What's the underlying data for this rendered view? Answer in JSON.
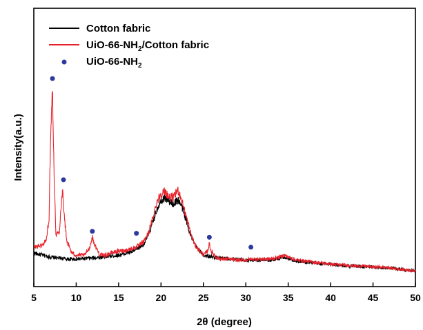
{
  "chart_data": {
    "type": "line",
    "xlabel": "2θ (degree)",
    "ylabel": "Intensity(a.u.)",
    "xlim": [
      5,
      50
    ],
    "x_ticks": [
      5,
      10,
      15,
      20,
      25,
      30,
      35,
      40,
      45,
      50
    ],
    "y_ticks_shown": false,
    "ylim": [
      0,
      100
    ],
    "grid": false,
    "legend_position": "top-left",
    "colors": {
      "cotton": "#000000",
      "composite": "#e8222b",
      "marker": "#2b3a9c"
    },
    "series": [
      {
        "name": "Cotton fabric",
        "x": [
          5,
          6,
          7,
          8,
          9,
          10,
          11,
          12,
          13,
          14,
          15,
          16,
          17,
          17.5,
          18,
          18.5,
          19,
          19.5,
          20,
          20.5,
          21,
          21.5,
          22,
          22.5,
          23,
          23.5,
          24,
          25,
          26,
          27,
          28,
          29,
          30,
          31,
          32,
          33,
          34,
          34.5,
          35,
          36,
          37,
          38,
          39,
          40,
          41,
          42,
          43,
          44,
          45,
          46,
          47,
          48,
          49,
          50
        ],
        "y": [
          12,
          11,
          10,
          9.5,
          9,
          9,
          9.3,
          9.6,
          10,
          10.5,
          11,
          12,
          13.5,
          15,
          17,
          21,
          27,
          34,
          39,
          40,
          38,
          37,
          39,
          35,
          28,
          21,
          16,
          11,
          10,
          9.5,
          9,
          9,
          8.5,
          8.5,
          8.5,
          8.5,
          9.5,
          10,
          9.5,
          8,
          7.5,
          7,
          6.5,
          6.5,
          6,
          5.5,
          5.5,
          5,
          5,
          4.5,
          4.5,
          4,
          3.5,
          3
        ]
      },
      {
        "name": "UiO-66-NH2/Cotton fabric",
        "x": [
          5,
          6,
          6.5,
          6.8,
          7.0,
          7.2,
          7.4,
          7.6,
          8.0,
          8.2,
          8.4,
          8.6,
          8.9,
          9.5,
          10,
          11,
          11.6,
          11.9,
          12.2,
          12.8,
          13.5,
          14,
          15,
          16,
          17,
          17.5,
          18,
          18.5,
          19,
          19.5,
          20,
          20.5,
          21,
          21.5,
          22,
          22.5,
          23,
          23.5,
          24,
          25,
          25.5,
          25.7,
          25.9,
          26.5,
          27,
          28,
          29,
          30,
          30.6,
          31,
          32,
          33,
          34,
          34.5,
          35,
          36,
          37,
          38,
          39,
          40,
          41,
          42,
          43,
          44,
          45,
          46,
          47,
          48,
          49,
          50
        ],
        "y": [
          15,
          16,
          19,
          30,
          75,
          96,
          50,
          22,
          22,
          35,
          44,
          30,
          18,
          12,
          11,
          11,
          15,
          20,
          16,
          11,
          11,
          12,
          13,
          13.5,
          15,
          16,
          18,
          22,
          29,
          38,
          42,
          43,
          40,
          40,
          44,
          38,
          30,
          22,
          16,
          11,
          13,
          17,
          13,
          10,
          9,
          9,
          8.5,
          8.5,
          9,
          9,
          9,
          9,
          10,
          11,
          10,
          8.5,
          8,
          7.5,
          7,
          6.5,
          6,
          6,
          5.5,
          5.5,
          5,
          5,
          4.5,
          4,
          3.5,
          3
        ]
      },
      {
        "name": "UiO-66-NH2",
        "type": "scatter",
        "x": [
          7.2,
          8.5,
          11.9,
          17.1,
          25.7,
          30.6
        ],
        "y": [
          100,
          49,
          23,
          22,
          20,
          15
        ]
      }
    ]
  },
  "legend": [
    {
      "label": "Cotton fabric",
      "sub": ""
    },
    {
      "label_pre": "UiO-66-NH",
      "sub": "2",
      "label_post": "/Cotton fabric"
    },
    {
      "label_pre": "UiO-66-NH",
      "sub": "2",
      "label_post": ""
    }
  ]
}
